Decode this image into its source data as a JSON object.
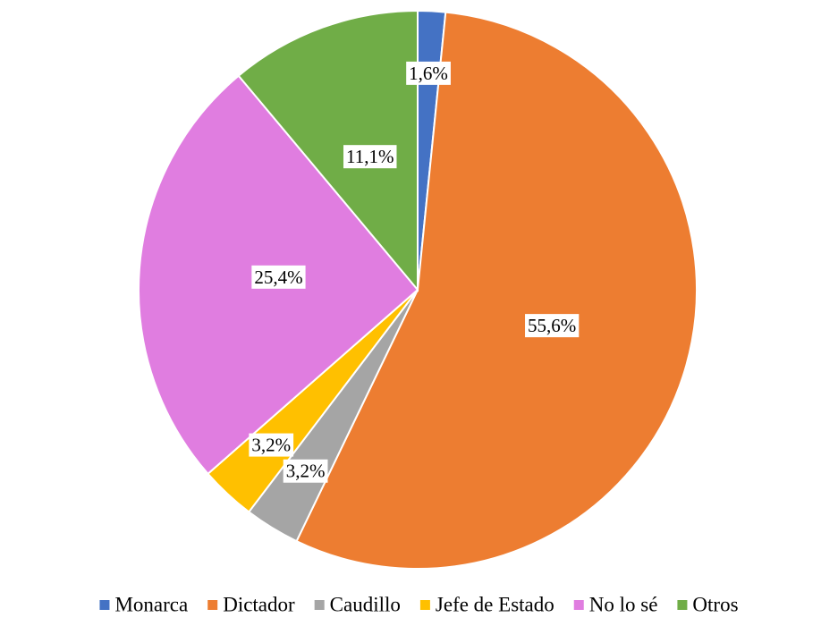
{
  "chart_data": {
    "type": "pie",
    "categories": [
      "Monarca",
      "Dictador",
      "Caudillo",
      "Jefe de Estado",
      "No lo sé",
      "Otros"
    ],
    "values": [
      1.6,
      55.6,
      3.2,
      3.2,
      25.4,
      11.1
    ],
    "value_labels": [
      "1,6%",
      "55,6%",
      "3,2%",
      "3,2%",
      "25,4%",
      "11,1%"
    ],
    "colors": [
      "#4472c4",
      "#ed7d31",
      "#a5a5a5",
      "#ffc000",
      "#e07de0",
      "#70ad47"
    ],
    "legend": "bottom"
  }
}
